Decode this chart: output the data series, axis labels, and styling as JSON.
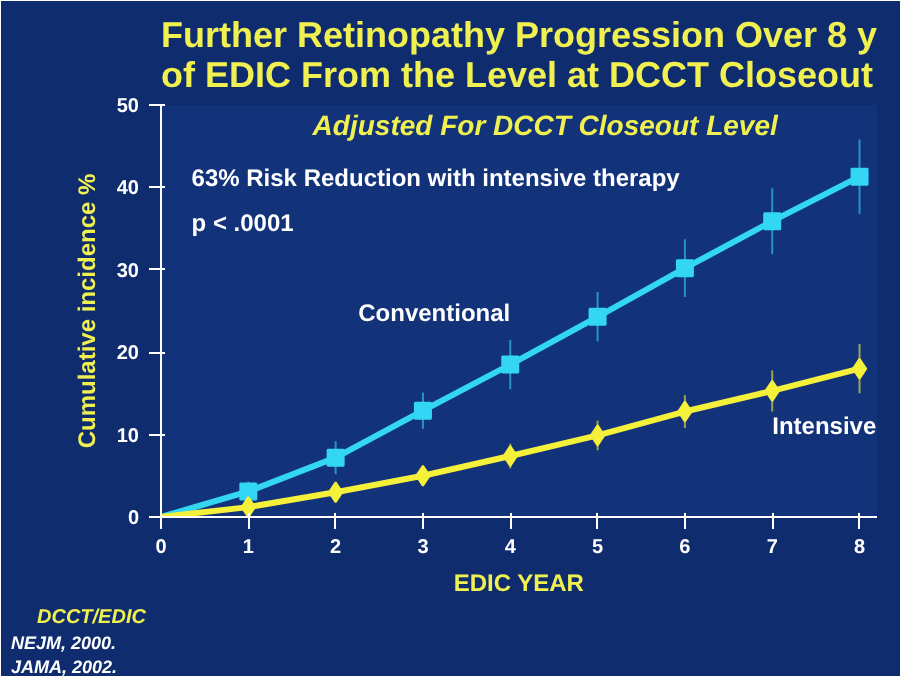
{
  "chart_data": {
    "type": "line",
    "title": "Further Retinopathy Progression Over 8 y\nof EDIC From the Level at DCCT Closeout",
    "subtitle": "Adjusted For DCCT Closeout Level",
    "xlabel": "EDIC YEAR",
    "ylabel": "Cumulative incidence %",
    "x": [
      0,
      1,
      2,
      3,
      4,
      5,
      6,
      7,
      8
    ],
    "series": [
      {
        "name": "Conventional",
        "color": "#33d6f5",
        "marker": "square",
        "values": [
          0,
          3.1,
          7.2,
          12.9,
          18.5,
          24.3,
          30.2,
          35.9,
          41.3
        ],
        "errors": [
          null,
          1.2,
          2,
          2.2,
          3,
          3,
          3.5,
          4,
          4.5
        ]
      },
      {
        "name": "Intensive",
        "color": "#f5f03a",
        "marker": "diamond",
        "values": [
          0,
          1.2,
          3.0,
          5.0,
          7.4,
          9.9,
          12.8,
          15.3,
          18.0
        ],
        "errors": [
          null,
          0.8,
          1,
          1,
          1.5,
          1.8,
          2,
          2.5,
          3
        ]
      }
    ],
    "annotations": [
      "63% Risk Reduction with intensive therapy",
      "p < .0001",
      "DCCT/EDIC",
      "NEJM, 2000.",
      "JAMA, 2002."
    ],
    "xlim": [
      0,
      8.2
    ],
    "ylim": [
      0,
      50
    ],
    "xticks": [
      0,
      1,
      2,
      3,
      4,
      5,
      6,
      7,
      8
    ],
    "yticks": [
      0,
      10,
      20,
      30,
      40,
      50
    ],
    "grid": false
  }
}
